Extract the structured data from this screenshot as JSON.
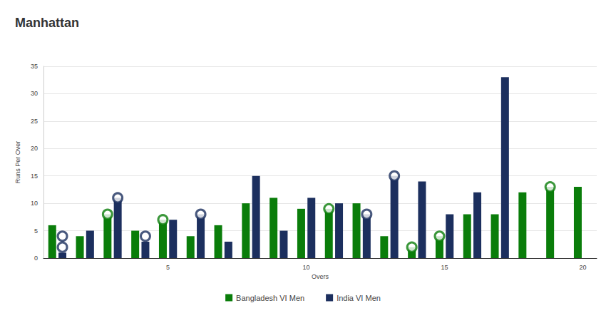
{
  "chart_data": {
    "type": "bar",
    "title": "Manhattan",
    "x_label": "Overs",
    "y_label": "Runs Per Over",
    "categories": [
      null,
      null,
      null,
      null,
      "5",
      null,
      null,
      null,
      null,
      "10",
      null,
      null,
      null,
      null,
      "15",
      null,
      null,
      null,
      null,
      "20"
    ],
    "series": [
      {
        "name": "Bangladesh VI Men",
        "color": "#0a7d0a",
        "values": [
          6,
          4,
          8,
          5,
          7,
          4,
          6,
          10,
          11,
          9,
          9,
          10,
          4,
          2,
          4,
          8,
          8,
          12,
          13,
          13
        ],
        "wickets": [
          [
            3,
            8
          ],
          [
            5,
            7
          ],
          [
            11,
            9
          ],
          [
            14,
            2
          ],
          [
            15,
            4
          ],
          [
            19,
            13
          ]
        ]
      },
      {
        "name": "India VI Men",
        "color": "#1c2f5e",
        "values": [
          1,
          5,
          11,
          3,
          7,
          8,
          3,
          15,
          5,
          11,
          10,
          8,
          15,
          14,
          8,
          12,
          33,
          null,
          null,
          null
        ],
        "wickets": [
          [
            1,
            2
          ],
          [
            1,
            4
          ],
          [
            3,
            11
          ],
          [
            4,
            4
          ],
          [
            6,
            8
          ],
          [
            12,
            8
          ],
          [
            13,
            15
          ]
        ]
      }
    ],
    "ylim": [
      0,
      35
    ],
    "yticks": [
      0,
      5,
      10,
      15,
      20,
      25,
      30,
      35
    ],
    "grid": true,
    "legend": "bottom"
  }
}
